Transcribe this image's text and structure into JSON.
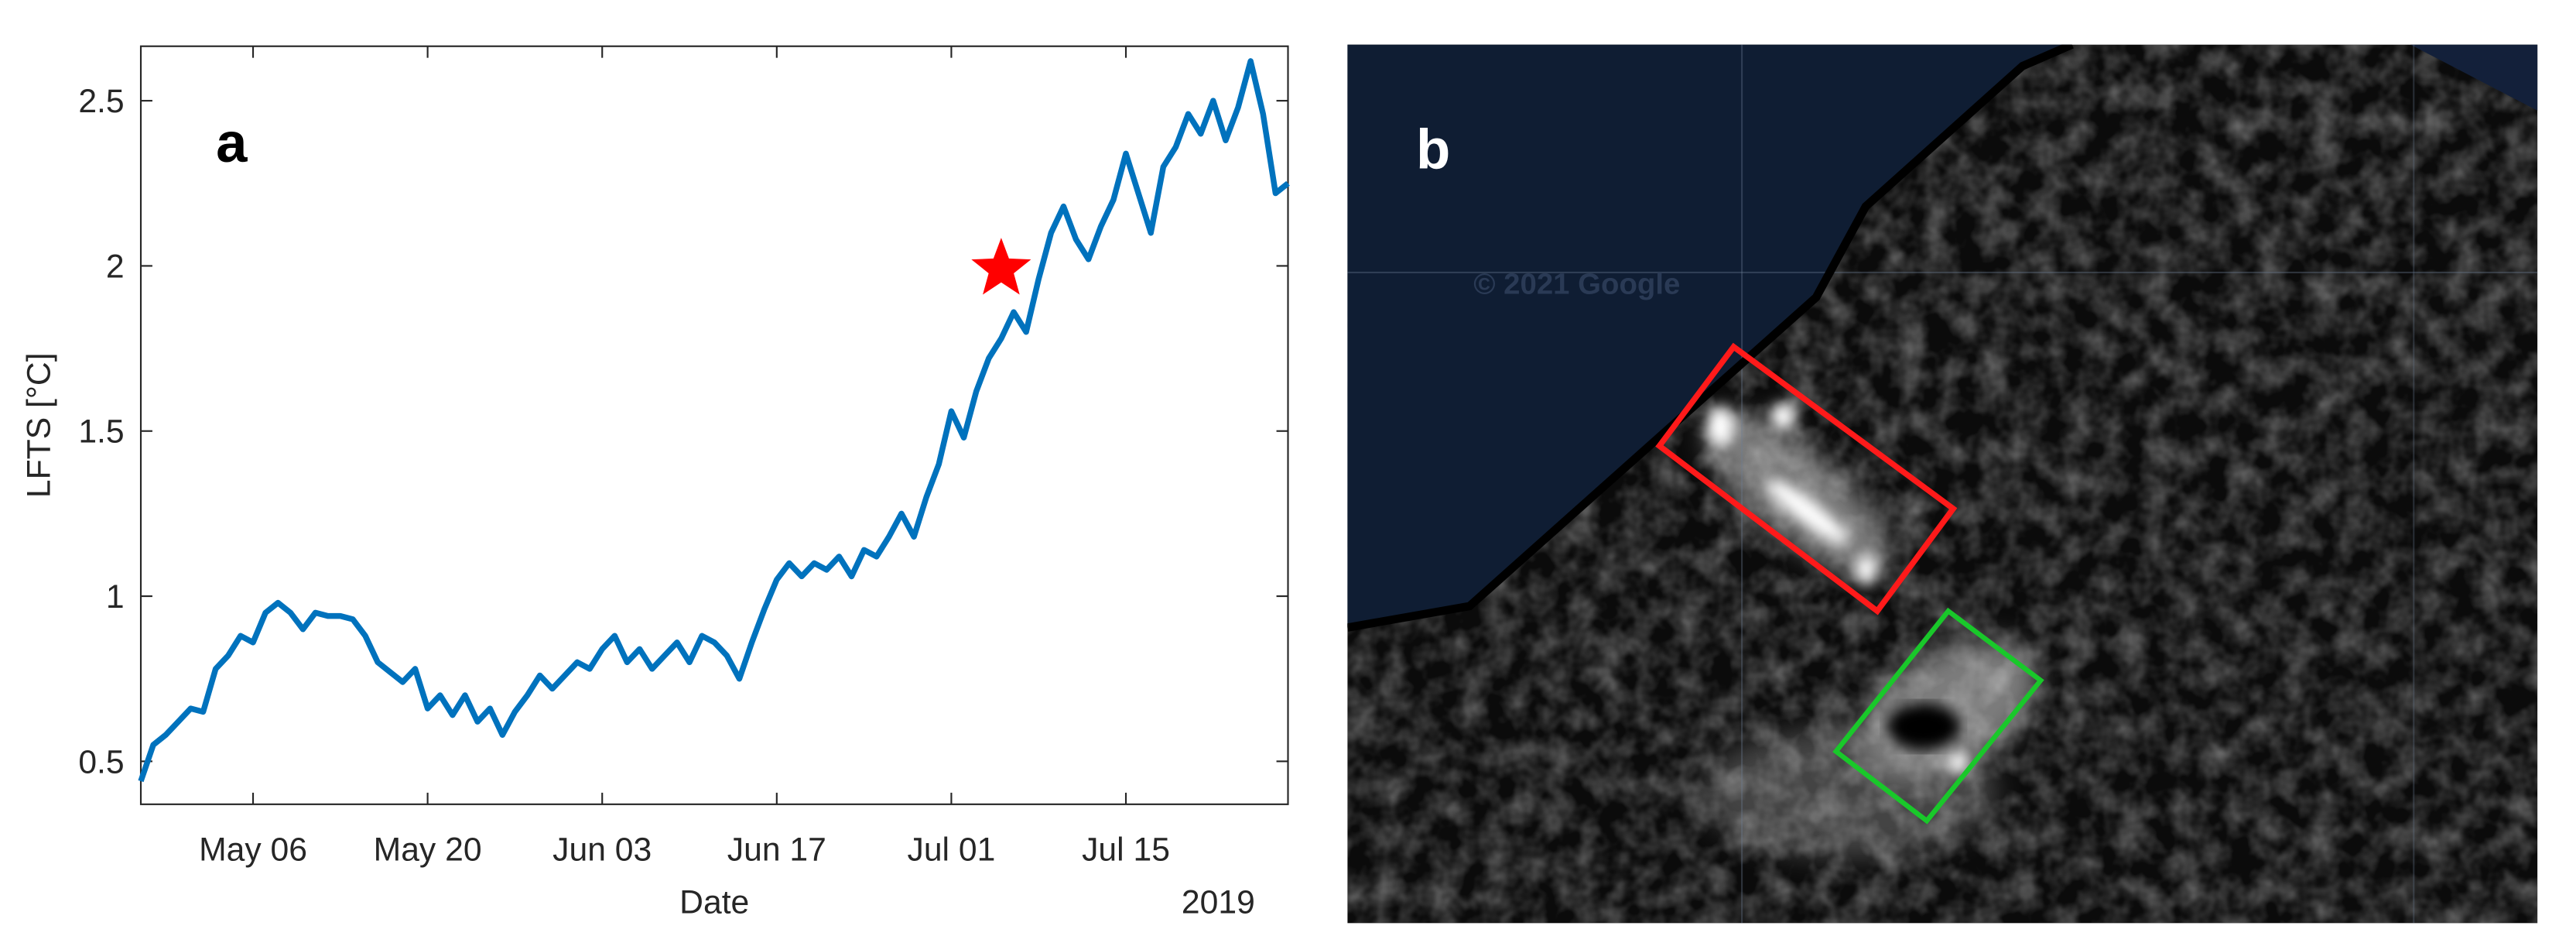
{
  "chart_data": [
    {
      "type": "line",
      "panel_label": "a",
      "x_label": "Date",
      "y_label": "LFTS [°C]",
      "x_year_label": "2019",
      "color": "#0072bd",
      "x": [
        "2019-04-27",
        "2019-04-28",
        "2019-04-29",
        "2019-04-30",
        "2019-05-01",
        "2019-05-02",
        "2019-05-03",
        "2019-05-04",
        "2019-05-05",
        "2019-05-06",
        "2019-05-07",
        "2019-05-08",
        "2019-05-09",
        "2019-05-10",
        "2019-05-11",
        "2019-05-12",
        "2019-05-13",
        "2019-05-14",
        "2019-05-15",
        "2019-05-16",
        "2019-05-17",
        "2019-05-18",
        "2019-05-19",
        "2019-05-20",
        "2019-05-21",
        "2019-05-22",
        "2019-05-23",
        "2019-05-24",
        "2019-05-25",
        "2019-05-26",
        "2019-05-27",
        "2019-05-28",
        "2019-05-29",
        "2019-05-30",
        "2019-05-31",
        "2019-06-01",
        "2019-06-02",
        "2019-06-03",
        "2019-06-04",
        "2019-06-05",
        "2019-06-06",
        "2019-06-07",
        "2019-06-08",
        "2019-06-09",
        "2019-06-10",
        "2019-06-11",
        "2019-06-12",
        "2019-06-13",
        "2019-06-14",
        "2019-06-15",
        "2019-06-16",
        "2019-06-17",
        "2019-06-18",
        "2019-06-19",
        "2019-06-20",
        "2019-06-21",
        "2019-06-22",
        "2019-06-23",
        "2019-06-24",
        "2019-06-25",
        "2019-06-26",
        "2019-06-27",
        "2019-06-28",
        "2019-06-29",
        "2019-06-30",
        "2019-07-01",
        "2019-07-02",
        "2019-07-03",
        "2019-07-04",
        "2019-07-05",
        "2019-07-06",
        "2019-07-07",
        "2019-07-08",
        "2019-07-09",
        "2019-07-10",
        "2019-07-11",
        "2019-07-12",
        "2019-07-13",
        "2019-07-14",
        "2019-07-15",
        "2019-07-16",
        "2019-07-17",
        "2019-07-18",
        "2019-07-19",
        "2019-07-20",
        "2019-07-21",
        "2019-07-22",
        "2019-07-23",
        "2019-07-24",
        "2019-07-25",
        "2019-07-26",
        "2019-07-27",
        "2019-07-28"
      ],
      "values": [
        0.44,
        0.55,
        0.58,
        0.62,
        0.66,
        0.65,
        0.78,
        0.82,
        0.88,
        0.86,
        0.95,
        0.98,
        0.95,
        0.9,
        0.95,
        0.94,
        0.94,
        0.93,
        0.88,
        0.8,
        0.77,
        0.74,
        0.78,
        0.66,
        0.7,
        0.64,
        0.7,
        0.62,
        0.66,
        0.58,
        0.65,
        0.7,
        0.76,
        0.72,
        0.76,
        0.8,
        0.78,
        0.84,
        0.88,
        0.8,
        0.84,
        0.78,
        0.82,
        0.86,
        0.8,
        0.88,
        0.86,
        0.82,
        0.75,
        0.86,
        0.96,
        1.05,
        1.1,
        1.06,
        1.1,
        1.08,
        1.12,
        1.06,
        1.14,
        1.12,
        1.18,
        1.25,
        1.18,
        1.3,
        1.4,
        1.56,
        1.48,
        1.62,
        1.72,
        1.78,
        1.86,
        1.8,
        1.96,
        2.1,
        2.18,
        2.08,
        2.02,
        2.12,
        2.2,
        2.34,
        2.22,
        2.1,
        2.3,
        2.36,
        2.46,
        2.4,
        2.5,
        2.38,
        2.48,
        2.62,
        2.46,
        2.22,
        2.25
      ],
      "marker": {
        "x": "2019-07-05",
        "y": 1.99,
        "color": "#ff0000"
      },
      "xlim": [
        "2019-04-27",
        "2019-07-28"
      ],
      "xticks": [
        {
          "value": "2019-05-06",
          "label": "May 06"
        },
        {
          "value": "2019-05-20",
          "label": "May 20"
        },
        {
          "value": "2019-06-03",
          "label": "Jun 03"
        },
        {
          "value": "2019-06-17",
          "label": "Jun 17"
        },
        {
          "value": "2019-07-01",
          "label": "Jul 01"
        },
        {
          "value": "2019-07-15",
          "label": "Jul 15"
        }
      ],
      "ylim": [
        0.37,
        2.665
      ],
      "yticks": [
        0.5,
        1,
        1.5,
        2,
        2.5
      ],
      "grid": false
    },
    {
      "type": "image",
      "panel_label": "b",
      "watermark": "© 2021 Google"
    }
  ]
}
